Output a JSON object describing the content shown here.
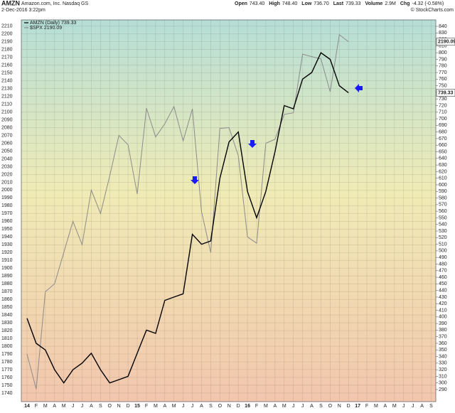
{
  "chart_data": {
    "type": "line",
    "title": "AMZN",
    "subtitle": "Amazon.com, Inc.  Nasdaq GS",
    "date": "2-Dec-2016 3:22pm",
    "quote": [
      {
        "label": "Open",
        "value": "743.40"
      },
      {
        "label": "High",
        "value": "748.40"
      },
      {
        "label": "Low",
        "value": "736.70"
      },
      {
        "label": "Last",
        "value": "739.33"
      },
      {
        "label": "Volume",
        "value": "2.9M"
      },
      {
        "label": "Chg",
        "value": "-4.32 (-0.58%)"
      }
    ],
    "credit": "© StockCharts.com",
    "categories": [
      "14",
      "F",
      "M",
      "A",
      "M",
      "J",
      "J",
      "A",
      "S",
      "O",
      "N",
      "D",
      "15",
      "F",
      "M",
      "A",
      "M",
      "J",
      "J",
      "A",
      "S",
      "O",
      "N",
      "D",
      "16",
      "F",
      "M",
      "A",
      "M",
      "J",
      "J",
      "A",
      "S",
      "O",
      "N",
      "D",
      "17",
      "F",
      "M",
      "A",
      "M",
      "J",
      "J",
      "A",
      "S"
    ],
    "series": [
      {
        "name": "$SPX 2190.09",
        "color": "#8c8c8c",
        "last_label": "2190.09",
        "values": [
          1790,
          1745,
          1870,
          1880,
          1920,
          1960,
          1930,
          2000,
          1970,
          2018,
          2070,
          2058,
          1995,
          2105,
          2068,
          2085,
          2107,
          2063,
          2104,
          1972,
          1920,
          2079,
          2080,
          2044,
          1940,
          1932,
          2060,
          2065,
          2097,
          2099,
          2174,
          2171,
          2168,
          2126,
          2199,
          2190.09,
          null,
          null,
          null,
          null,
          null,
          null,
          null,
          null,
          null
        ]
      },
      {
        "name": "AMZN (Daily) 739.33",
        "color": "#000000",
        "axis": "y2",
        "last_label": "739.33",
        "values": [
          398,
          360,
          350,
          320,
          300,
          320,
          330,
          345,
          320,
          300,
          305,
          310,
          345,
          380,
          375,
          425,
          430,
          435,
          525,
          510,
          515,
          610,
          665,
          680,
          590,
          550,
          590,
          650,
          720,
          715,
          760,
          770,
          800,
          790,
          750,
          739.33,
          null,
          null,
          null,
          null,
          null,
          null,
          null,
          null,
          null
        ]
      }
    ],
    "ylim": [
      1729,
      2218
    ],
    "yticks": [
      1740,
      1750,
      1760,
      1770,
      1780,
      1790,
      1800,
      1810,
      1820,
      1830,
      1840,
      1850,
      1860,
      1870,
      1880,
      1890,
      1900,
      1910,
      1920,
      1930,
      1940,
      1950,
      1960,
      1970,
      1980,
      1990,
      2000,
      2010,
      2020,
      2030,
      2040,
      2050,
      2060,
      2070,
      2080,
      2090,
      2100,
      2110,
      2120,
      2130,
      2140,
      2150,
      2160,
      2170,
      2180,
      2190,
      2200,
      2210
    ],
    "y2lim": [
      271.7,
      849.7
    ],
    "y2ticks": [
      290,
      300,
      310,
      320,
      330,
      340,
      350,
      360,
      370,
      380,
      390,
      400,
      410,
      420,
      430,
      440,
      450,
      460,
      470,
      480,
      490,
      500,
      510,
      520,
      530,
      540,
      550,
      560,
      570,
      580,
      590,
      600,
      610,
      620,
      630,
      640,
      650,
      660,
      670,
      680,
      690,
      700,
      710,
      720,
      730,
      740,
      750,
      760,
      770,
      780,
      790,
      800,
      810,
      820,
      830,
      840
    ],
    "grid": true
  }
}
